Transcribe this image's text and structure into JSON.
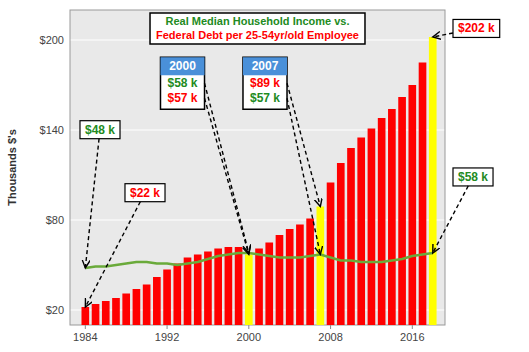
{
  "chart_data": {
    "type": "bar",
    "title": "Real Median Household Income  vs.",
    "subtitle": "Federal Debt per 25-54yr/old Employee",
    "y_label": "Thousands $'s",
    "x": [
      1984,
      1985,
      1986,
      1987,
      1988,
      1989,
      1990,
      1991,
      1992,
      1993,
      1994,
      1995,
      1996,
      1997,
      1998,
      1999,
      2000,
      2001,
      2002,
      2003,
      2004,
      2005,
      2006,
      2007,
      2008,
      2009,
      2010,
      2011,
      2012,
      2013,
      2014,
      2015,
      2016,
      2017,
      2018
    ],
    "series": [
      {
        "type": "bar",
        "colors": [
          "red",
          "red",
          "red",
          "red",
          "red",
          "red",
          "red",
          "red",
          "red",
          "red",
          "red",
          "red",
          "red",
          "red",
          "red",
          "red",
          "yellow",
          "red",
          "red",
          "red",
          "red",
          "red",
          "red",
          "yellow",
          "red",
          "red",
          "red",
          "red",
          "red",
          "red",
          "red",
          "red",
          "red",
          "red",
          "yellow"
        ],
        "values": [
          22,
          24,
          26,
          28,
          31,
          34,
          37,
          42,
          47,
          51,
          55,
          57,
          59,
          61,
          62,
          62,
          57,
          61,
          65,
          70,
          74,
          77,
          81,
          89,
          105,
          118,
          128,
          135,
          141,
          148,
          154,
          162,
          170,
          185,
          202
        ]
      },
      {
        "type": "line",
        "color": "#6aaa3a",
        "values": [
          48,
          49,
          49,
          50,
          51,
          52,
          52,
          51,
          51,
          50,
          51,
          52,
          54,
          56,
          57,
          58,
          58,
          57,
          56,
          55,
          55,
          55,
          56,
          57,
          55,
          53,
          53,
          52,
          52,
          52,
          53,
          54,
          56,
          57,
          58
        ]
      }
    ],
    "xlim": [
      1982.5,
      2019.2
    ],
    "xticks": [
      1984,
      1992,
      2000,
      2008,
      2016
    ],
    "ylim": [
      10,
      220
    ],
    "yticks": [
      {
        "value": 20,
        "label": "$20"
      },
      {
        "value": 80,
        "label": "$80"
      },
      {
        "value": 140,
        "label": "$140"
      },
      {
        "value": 200,
        "label": "$200"
      }
    ],
    "grid": true,
    "annotations": [
      {
        "text": "$48 k",
        "x": 1984,
        "y": 48,
        "color": "#228B22"
      },
      {
        "text": "$22 k",
        "x": 1984,
        "y": 22,
        "color": "red"
      },
      {
        "label": "2000",
        "x": 2000,
        "items": [
          {
            "text": "$58 k",
            "y": 58,
            "color": "#228B22"
          },
          {
            "text": "$57 k",
            "y": 57,
            "color": "red"
          }
        ]
      },
      {
        "label": "2007",
        "x": 2007,
        "items": [
          {
            "text": "$89 k",
            "y": 89,
            "color": "red"
          },
          {
            "text": "$57 k",
            "y": 57,
            "color": "#228B22"
          }
        ]
      },
      {
        "text": "$202 k",
        "x": 2018,
        "y": 202,
        "color": "red"
      },
      {
        "text": "$58 k",
        "x": 2018,
        "y": 58,
        "color": "#228B22"
      }
    ]
  }
}
